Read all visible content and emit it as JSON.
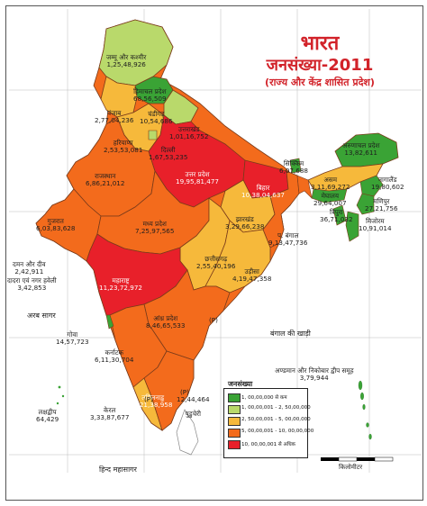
{
  "title": {
    "line1": "भारत",
    "line2": "जनसंख्या-2011",
    "line3": "(राज्य और केंद्र शासित प्रदेश)"
  },
  "colors": {
    "class1": "#3aa335",
    "class2": "#b9d96b",
    "class3": "#f6b93b",
    "class4": "#f36b1c",
    "class5": "#e8202a",
    "sea": "#ffffff",
    "border": "#7a3b1a"
  },
  "legend": {
    "title": "जनसंख्या",
    "items": [
      {
        "label": "1, 00,00,000 से कम",
        "color": "#3aa335"
      },
      {
        "label": "1, 00,00,001 - 2, 50,00,000",
        "color": "#b9d96b"
      },
      {
        "label": "2, 50,00,001 - 5, 00,00,000",
        "color": "#f6b93b"
      },
      {
        "label": "5, 00,00,001 - 10, 00,00,000",
        "color": "#f36b1c"
      },
      {
        "label": "10, 00,00,001 से अधिक",
        "color": "#e8202a"
      }
    ]
  },
  "scale_label": "किलोमीटर",
  "seas": {
    "arabian": "अरब सागर",
    "bengal": "बंगाल की खाड़ी",
    "indian": "हिन्द महासागर"
  },
  "regions": [
    {
      "id": "jk",
      "name": "जम्मू और कश्मीर",
      "value": "1,25,48,926",
      "cls": "class2"
    },
    {
      "id": "hp",
      "name": "हिमाचल प्रदेश",
      "value": "68,56,509",
      "cls": "class1"
    },
    {
      "id": "pb",
      "name": "पंजाब",
      "value": "2,77,04,236",
      "cls": "class3"
    },
    {
      "id": "ch",
      "name": "चंडीगढ़",
      "value": "10,54,686",
      "cls": "class1"
    },
    {
      "id": "uk",
      "name": "उत्तराखंड",
      "value": "1,01,16,752",
      "cls": "class2"
    },
    {
      "id": "hr",
      "name": "हरियाणा",
      "value": "2,53,53,081",
      "cls": "class3"
    },
    {
      "id": "dl",
      "name": "दिल्ली",
      "value": "1,67,53,235",
      "cls": "class2"
    },
    {
      "id": "rj",
      "name": "राजस्थान",
      "value": "6,86,21,012",
      "cls": "class4"
    },
    {
      "id": "up",
      "name": "उत्तर प्रदेश",
      "value": "19,95,81,477",
      "cls": "class5"
    },
    {
      "id": "br",
      "name": "बिहार",
      "value": "10,38,04,637",
      "cls": "class5"
    },
    {
      "id": "sk",
      "name": "सिक्किम",
      "value": "6,07,688",
      "cls": "class1"
    },
    {
      "id": "ar",
      "name": "अरुणाचल प्रदेश",
      "value": "13,82,611",
      "cls": "class1"
    },
    {
      "id": "as",
      "name": "असम",
      "value": "3,11,69,272",
      "cls": "class3"
    },
    {
      "id": "nl",
      "name": "नागालैंड",
      "value": "19,80,602",
      "cls": "class1"
    },
    {
      "id": "ml",
      "name": "मेघालय",
      "value": "29,64,007",
      "cls": "class1"
    },
    {
      "id": "mn",
      "name": "मणिपुर",
      "value": "27,21,756",
      "cls": "class1"
    },
    {
      "id": "tr",
      "name": "त्रिपुरा",
      "value": "36,71,032",
      "cls": "class1"
    },
    {
      "id": "mz",
      "name": "मिजोरम",
      "value": "10,91,014",
      "cls": "class1"
    },
    {
      "id": "gj",
      "name": "गुजरात",
      "value": "6,03,83,628",
      "cls": "class4"
    },
    {
      "id": "mp",
      "name": "मध्य प्रदेश",
      "value": "7,25,97,565",
      "cls": "class4"
    },
    {
      "id": "jh",
      "name": "झारखंड",
      "value": "3,29,66,238",
      "cls": "class3"
    },
    {
      "id": "wb",
      "name": "प. बंगाल",
      "value": "9,13,47,736",
      "cls": "class4"
    },
    {
      "id": "dd",
      "name": "दमन और दीव",
      "value": "2,42,911",
      "cls": "class1"
    },
    {
      "id": "dnh",
      "name": "दादरा एवं नगर हवेली",
      "value": "3,42,853",
      "cls": "class1"
    },
    {
      "id": "cg",
      "name": "छत्तीसगढ़",
      "value": "2,55,40,196",
      "cls": "class3"
    },
    {
      "id": "od",
      "name": "उड़ीसा",
      "value": "4,19,47,358",
      "cls": "class3"
    },
    {
      "id": "mh",
      "name": "महाराष्ट्र",
      "value": "11,23,72,972",
      "cls": "class5"
    },
    {
      "id": "ap",
      "name": "आंध्र प्रदेश",
      "value": "8,46,65,533",
      "cls": "class4"
    },
    {
      "id": "ga",
      "name": "गोवा",
      "value": "14,57,723",
      "cls": "class1"
    },
    {
      "id": "ka",
      "name": "कर्नाटक",
      "value": "6,11,30,704",
      "cls": "class4"
    },
    {
      "id": "an",
      "name": "अण्डमान और निकोबार द्वीप समूह",
      "value": "3,79,944",
      "cls": "class1"
    },
    {
      "id": "ld",
      "name": "लक्षद्वीप",
      "value": "64,429",
      "cls": "class1"
    },
    {
      "id": "kl",
      "name": "केरल",
      "value": "3,33,87,677",
      "cls": "class3"
    },
    {
      "id": "tn",
      "name": "तमिलनाडु",
      "value": "7,21,38,958",
      "cls": "class4"
    },
    {
      "id": "py",
      "name": "पुडुचेरी",
      "value": "12,44,464",
      "cls": "class1"
    }
  ],
  "markers": {
    "p1": "(P)",
    "p2": "(P)",
    "p3": "(P)"
  }
}
